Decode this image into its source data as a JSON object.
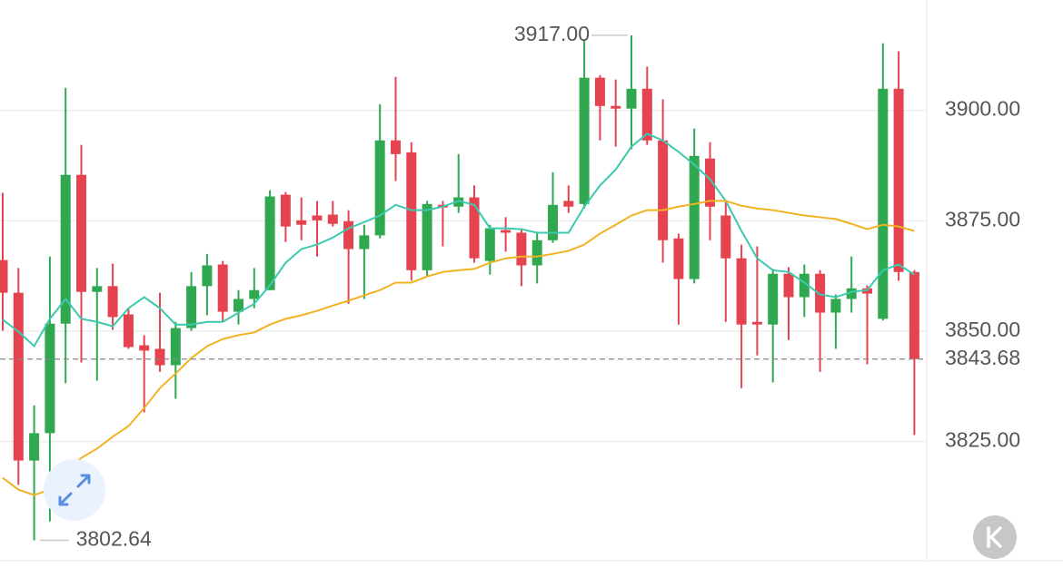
{
  "chart_data": {
    "type": "candlestick",
    "up_color": "#2fa84f",
    "down_color": "#e5434f",
    "grid": true,
    "ylim": [
      3797.6,
      3925
    ],
    "yticks": [
      {
        "value": 3900,
        "label": "3900.00"
      },
      {
        "value": 3875,
        "label": "3875.00"
      },
      {
        "value": 3850,
        "label": "3850.00"
      },
      {
        "value": 3825,
        "label": "3825.00"
      }
    ],
    "open": [
      3866.1,
      3858.7,
      3820.7,
      3826.9,
      3851.7,
      3885.4,
      3858.9,
      3860.2,
      3853.8,
      3846.8,
      3846.0,
      3842.3,
      3850.7,
      3860.2,
      3865.1,
      3854.4,
      3857.3,
      3859.3,
      3880.9,
      3875.1,
      3876.2,
      3876.4,
      3874.9,
      3868.6,
      3871.7,
      3893.2,
      3890.5,
      3863.8,
      3878.6,
      3878.2,
      3880.3,
      3865.9,
      3872.9,
      3872.3,
      3864.9,
      3870.6,
      3879.5,
      3878.8,
      3907.4,
      3901.0,
      3900.4,
      3904.9,
      3893.2,
      3871.0,
      3861.8,
      3889.1,
      3876.2,
      3866.5,
      3852.1,
      3851.5,
      3863.0,
      3857.7,
      3863.0,
      3854.2,
      3857.3,
      3859.7,
      3852.8,
      3904.9,
      3863.4
    ],
    "high": [
      3881.3,
      3864.3,
      3833.2,
      3866.9,
      3905.1,
      3892.2,
      3864.3,
      3865.3,
      3855.2,
      3849.1,
      3858.7,
      3852.1,
      3863.4,
      3867.5,
      3865.9,
      3859.3,
      3864.3,
      3881.9,
      3881.5,
      3880.3,
      3879.5,
      3879.5,
      3877.4,
      3874.1,
      3901.4,
      3907.6,
      3892.8,
      3879.5,
      3879.5,
      3890.1,
      3883.0,
      3874.1,
      3875.8,
      3873.3,
      3872.1,
      3886.0,
      3883.0,
      3916.0,
      3908.0,
      3907.0,
      3917,
      3909.9,
      3902.5,
      3872.1,
      3895.9,
      3892.8,
      3879.5,
      3869.6,
      3869.2,
      3864.1,
      3864.5,
      3865.1,
      3863.8,
      3858.3,
      3866.9,
      3860.4,
      3915.2,
      3913.4,
      3863.8
    ],
    "low": [
      3850.1,
      3815.2,
      3802.64,
      3806.9,
      3838.2,
      3842.9,
      3838.8,
      3850.3,
      3846.0,
      3831.6,
      3840.8,
      3834.7,
      3850.1,
      3853.6,
      3852.1,
      3851.5,
      3855.2,
      3859.3,
      3870.2,
      3870.6,
      3866.9,
      3873.7,
      3856.2,
      3857.3,
      3871.0,
      3884.0,
      3861.4,
      3862.4,
      3869.2,
      3876.8,
      3865.5,
      3862.8,
      3868.0,
      3860.2,
      3860.8,
      3870.0,
      3876.8,
      3877.8,
      3893.2,
      3891.8,
      3891.2,
      3892.2,
      3865.5,
      3851.5,
      3860.8,
      3870.6,
      3852.1,
      3837.1,
      3844.5,
      3838.4,
      3848.0,
      3853.2,
      3840.8,
      3846.0,
      3854.2,
      3842.5,
      3852.4,
      3861.4,
      3826.5
    ],
    "close": [
      3858.7,
      3820.7,
      3826.9,
      3851.7,
      3885.4,
      3858.9,
      3860.2,
      3853.2,
      3846.4,
      3845.6,
      3842.3,
      3850.7,
      3860.2,
      3864.9,
      3854.4,
      3857.3,
      3859.3,
      3880.5,
      3873.7,
      3874.1,
      3875.1,
      3874.3,
      3868.6,
      3871.7,
      3893.2,
      3890.1,
      3863.8,
      3878.8,
      3878.0,
      3880.3,
      3866.5,
      3873.3,
      3872.3,
      3864.9,
      3870.6,
      3878.6,
      3878.2,
      3907.4,
      3901.0,
      3900.4,
      3904.9,
      3893.2,
      3870.6,
      3861.8,
      3889.7,
      3878.2,
      3866.5,
      3851.5,
      3851.5,
      3863.0,
      3857.7,
      3863.0,
      3854.2,
      3857.3,
      3859.7,
      3858.5,
      3904.9,
      3863.4,
      3843.68
    ],
    "overlays": [
      {
        "color": "#3cc9b0",
        "values": [
          3852.6,
          3849.9,
          3846.6,
          3852.8,
          3857.3,
          3852.8,
          3852.1,
          3851.1,
          3855.2,
          3857.7,
          3855.2,
          3851.5,
          3851.5,
          3852.1,
          3852.1,
          3854.2,
          3856.2,
          3860.4,
          3865.5,
          3868.6,
          3869.6,
          3871.2,
          3873.3,
          3874.7,
          3876.2,
          3878.6,
          3877.4,
          3877.4,
          3878.2,
          3879.5,
          3878.6,
          3873.3,
          3873.3,
          3873.1,
          3872.3,
          3872.3,
          3872.3,
          3878.2,
          3883.0,
          3886.6,
          3891.8,
          3894.7,
          3893.2,
          3890.6,
          3887.7,
          3884.4,
          3879.5,
          3872.7,
          3866.5,
          3863.8,
          3863.4,
          3861.0,
          3858.3,
          3857.7,
          3858.9,
          3859.3,
          3863.8,
          3865.1,
          3862.8
        ]
      },
      {
        "color": "#f0b323",
        "values": [
          3816.8,
          3814.1,
          3812.9,
          3814.1,
          3818.2,
          3821.3,
          3823.4,
          3826.1,
          3828.5,
          3832.6,
          3837.1,
          3840.4,
          3843.9,
          3846.6,
          3848.2,
          3849.1,
          3849.7,
          3851.5,
          3852.8,
          3853.6,
          3854.6,
          3855.8,
          3856.9,
          3858.1,
          3859.3,
          3861.0,
          3861.0,
          3862.4,
          3863.4,
          3863.8,
          3864.1,
          3865.5,
          3866.5,
          3866.9,
          3866.9,
          3867.5,
          3868.2,
          3869.6,
          3872.1,
          3874.1,
          3876.2,
          3877.4,
          3877.4,
          3878.2,
          3878.8,
          3879.5,
          3879.5,
          3878.4,
          3877.8,
          3877.4,
          3876.8,
          3876.2,
          3875.8,
          3875.4,
          3874.3,
          3873.1,
          3874.1,
          3873.7,
          3872.7
        ]
      }
    ],
    "max_label": {
      "value": 3917,
      "label": "3917.00"
    },
    "min_label": 3802.64,
    "last_price": 3843.68
  }
}
